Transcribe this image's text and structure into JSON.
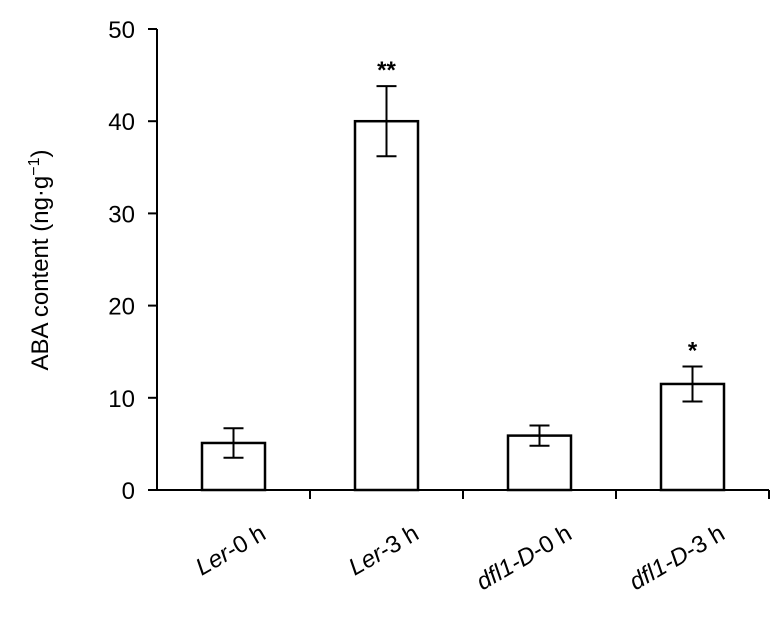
{
  "chart_data": {
    "type": "bar",
    "categories": [
      {
        "parts": [
          {
            "text": "L",
            "italic": true
          },
          {
            "text": "er",
            "italic": true
          },
          {
            "text": "-0 h",
            "italic": false
          }
        ]
      },
      {
        "parts": [
          {
            "text": "L",
            "italic": true
          },
          {
            "text": "er",
            "italic": true
          },
          {
            "text": "-3 h",
            "italic": false
          }
        ]
      },
      {
        "parts": [
          {
            "text": "dfl1-D",
            "italic": true
          },
          {
            "text": "-0 h",
            "italic": false
          }
        ]
      },
      {
        "parts": [
          {
            "text": "dfl1-D",
            "italic": true
          },
          {
            "text": "-3 h",
            "italic": false
          }
        ]
      }
    ],
    "values": [
      5.1,
      40.0,
      5.9,
      11.5
    ],
    "errors": [
      1.6,
      3.8,
      1.1,
      1.9
    ],
    "significance": [
      "",
      "**",
      "",
      "*"
    ],
    "ylabel": {
      "main": "ABA content (ng·g",
      "sup": "−1",
      "tail": ")"
    },
    "ylim": [
      0,
      50
    ],
    "yticks": [
      0,
      10,
      20,
      30,
      40,
      50
    ],
    "bar_fill": "#ffffff",
    "bar_stroke": "#000000",
    "grid": false,
    "legend": "none"
  }
}
